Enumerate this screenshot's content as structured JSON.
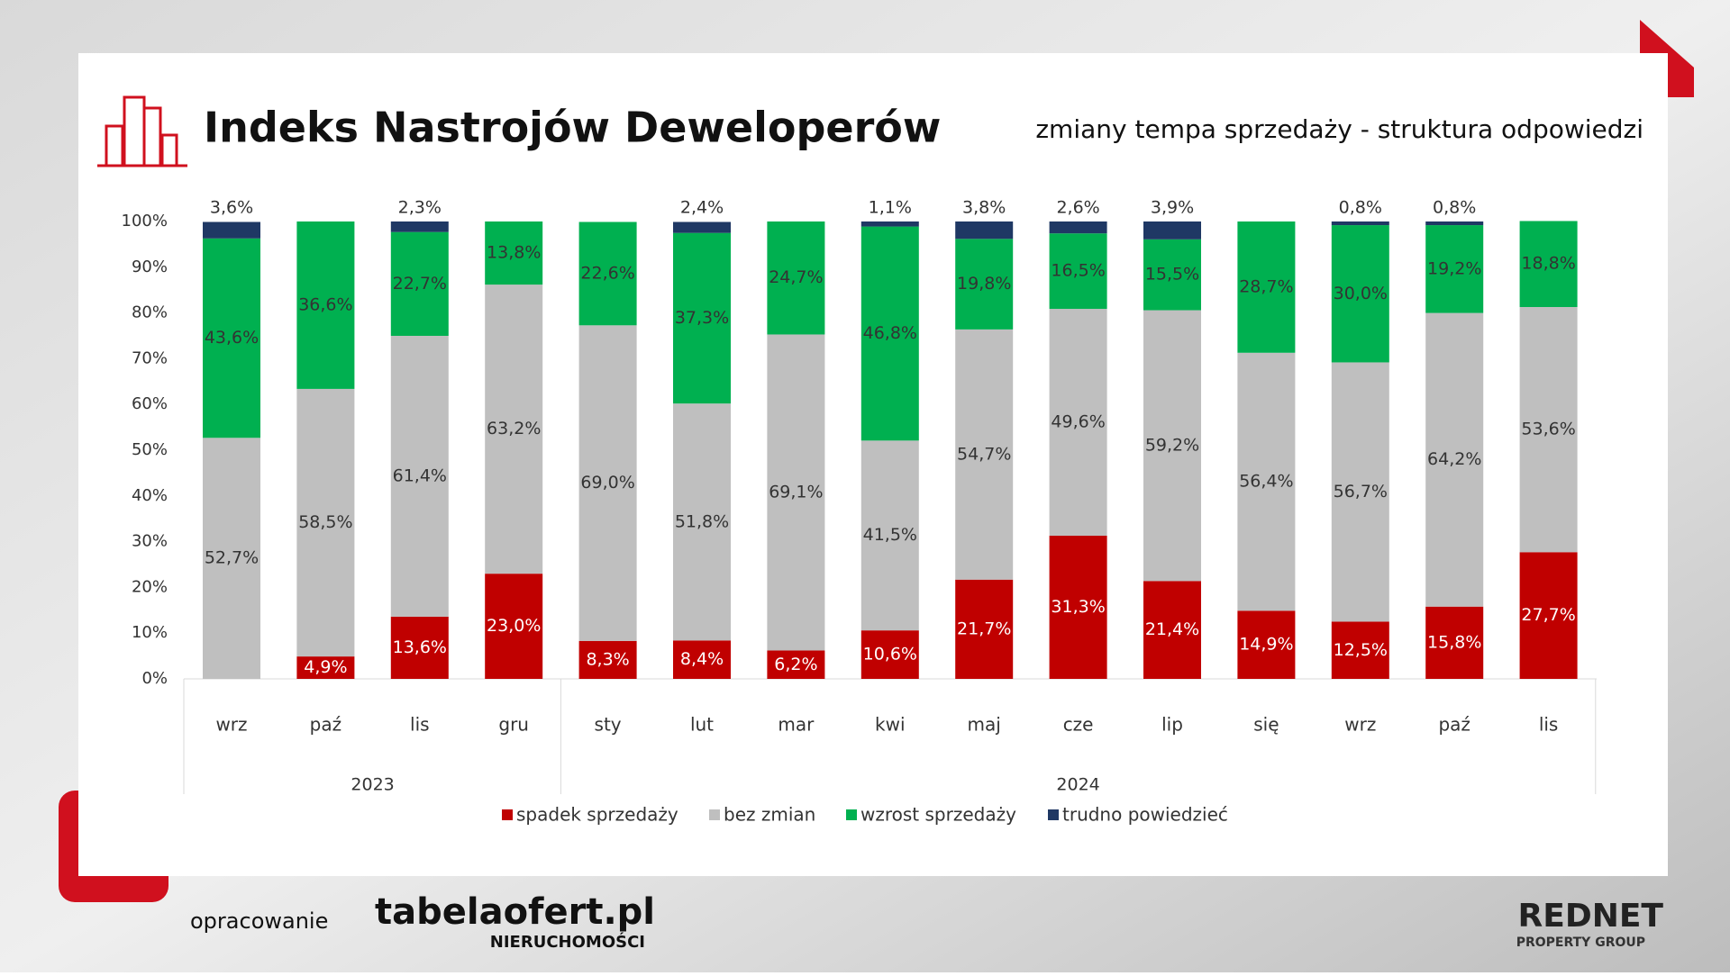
{
  "chart_data": {
    "type": "stacked_bar",
    "title": "Indeks Nastrojów Deweloperów",
    "subtitle": "zmiany tempa sprzedaży - struktura odpowiedzi",
    "groups": [
      {
        "label": "2023",
        "categories": [
          "wrz",
          "paź",
          "lis",
          "gru"
        ]
      },
      {
        "label": "2024",
        "categories": [
          "sty",
          "lut",
          "mar",
          "kwi",
          "maj",
          "cze",
          "lip",
          "się",
          "wrz",
          "paź",
          "lis"
        ]
      }
    ],
    "series": [
      {
        "name": "spadek sprzedaży",
        "color": "#c00000",
        "values": [
          null,
          4.9,
          13.6,
          23.0,
          8.3,
          8.4,
          6.2,
          10.6,
          21.7,
          31.3,
          21.4,
          14.9,
          12.5,
          15.8,
          27.7
        ],
        "value_labels": [
          null,
          "4,9%",
          "13,6%",
          "23,0%",
          "8,3%",
          "8,4%",
          "6,2%",
          "10,6%",
          "21,7%",
          "31,3%",
          "21,4%",
          "14,9%",
          "12,5%",
          "15,8%",
          "27,7%"
        ]
      },
      {
        "name": "bez zmian",
        "color": "#bfbfbf",
        "values": [
          52.7,
          58.5,
          61.4,
          63.2,
          69.0,
          51.8,
          69.1,
          41.5,
          54.7,
          49.6,
          59.2,
          56.4,
          56.7,
          64.2,
          53.6
        ],
        "value_labels": [
          "52,7%",
          "58,5%",
          "61,4%",
          "63,2%",
          "69,0%",
          "51,8%",
          "69,1%",
          "41,5%",
          "54,7%",
          "49,6%",
          "59,2%",
          "56,4%",
          "56,7%",
          "64,2%",
          "53,6%"
        ]
      },
      {
        "name": "wzrost sprzedaży",
        "color": "#00b050",
        "values": [
          43.6,
          36.6,
          22.7,
          13.8,
          22.6,
          37.3,
          24.7,
          46.8,
          19.8,
          16.5,
          15.5,
          28.7,
          30.0,
          19.2,
          18.8
        ],
        "value_labels": [
          "43,6%",
          "36,6%",
          "22,7%",
          "13,8%",
          "22,6%",
          "37,3%",
          "24,7%",
          "46,8%",
          "19,8%",
          "16,5%",
          "15,5%",
          "28,7%",
          "30,0%",
          "19,2%",
          "18,8%"
        ]
      },
      {
        "name": "trudno powiedzieć",
        "color": "#1f3864",
        "values": [
          3.6,
          null,
          2.3,
          null,
          null,
          2.4,
          null,
          1.1,
          3.8,
          2.6,
          3.9,
          null,
          0.8,
          0.8,
          null
        ],
        "value_labels": [
          "3,6%",
          null,
          "2,3%",
          null,
          null,
          "2,4%",
          null,
          "1,1%",
          "3,8%",
          "2,6%",
          "3,9%",
          null,
          "0,8%",
          "0,8%",
          null
        ]
      }
    ],
    "ylim": [
      0,
      100
    ],
    "yticks": [
      {
        "value": 0,
        "label": "0%"
      },
      {
        "value": 10,
        "label": "10%"
      },
      {
        "value": 20,
        "label": "20%"
      },
      {
        "value": 30,
        "label": "30%"
      },
      {
        "value": 40,
        "label": "40%"
      },
      {
        "value": 50,
        "label": "50%"
      },
      {
        "value": 60,
        "label": "60%"
      },
      {
        "value": 70,
        "label": "70%"
      },
      {
        "value": 80,
        "label": "80%"
      },
      {
        "value": 90,
        "label": "90%"
      },
      {
        "value": 100,
        "label": "100%"
      }
    ],
    "legend": "bottom"
  },
  "footer": {
    "prepared": "opracowanie",
    "logo1": "tabelaofert.pl",
    "logo1_sub": "NIERUCHOMOŚCI",
    "logo2": "REDNET",
    "logo2_sub": "PROPERTY GROUP"
  }
}
